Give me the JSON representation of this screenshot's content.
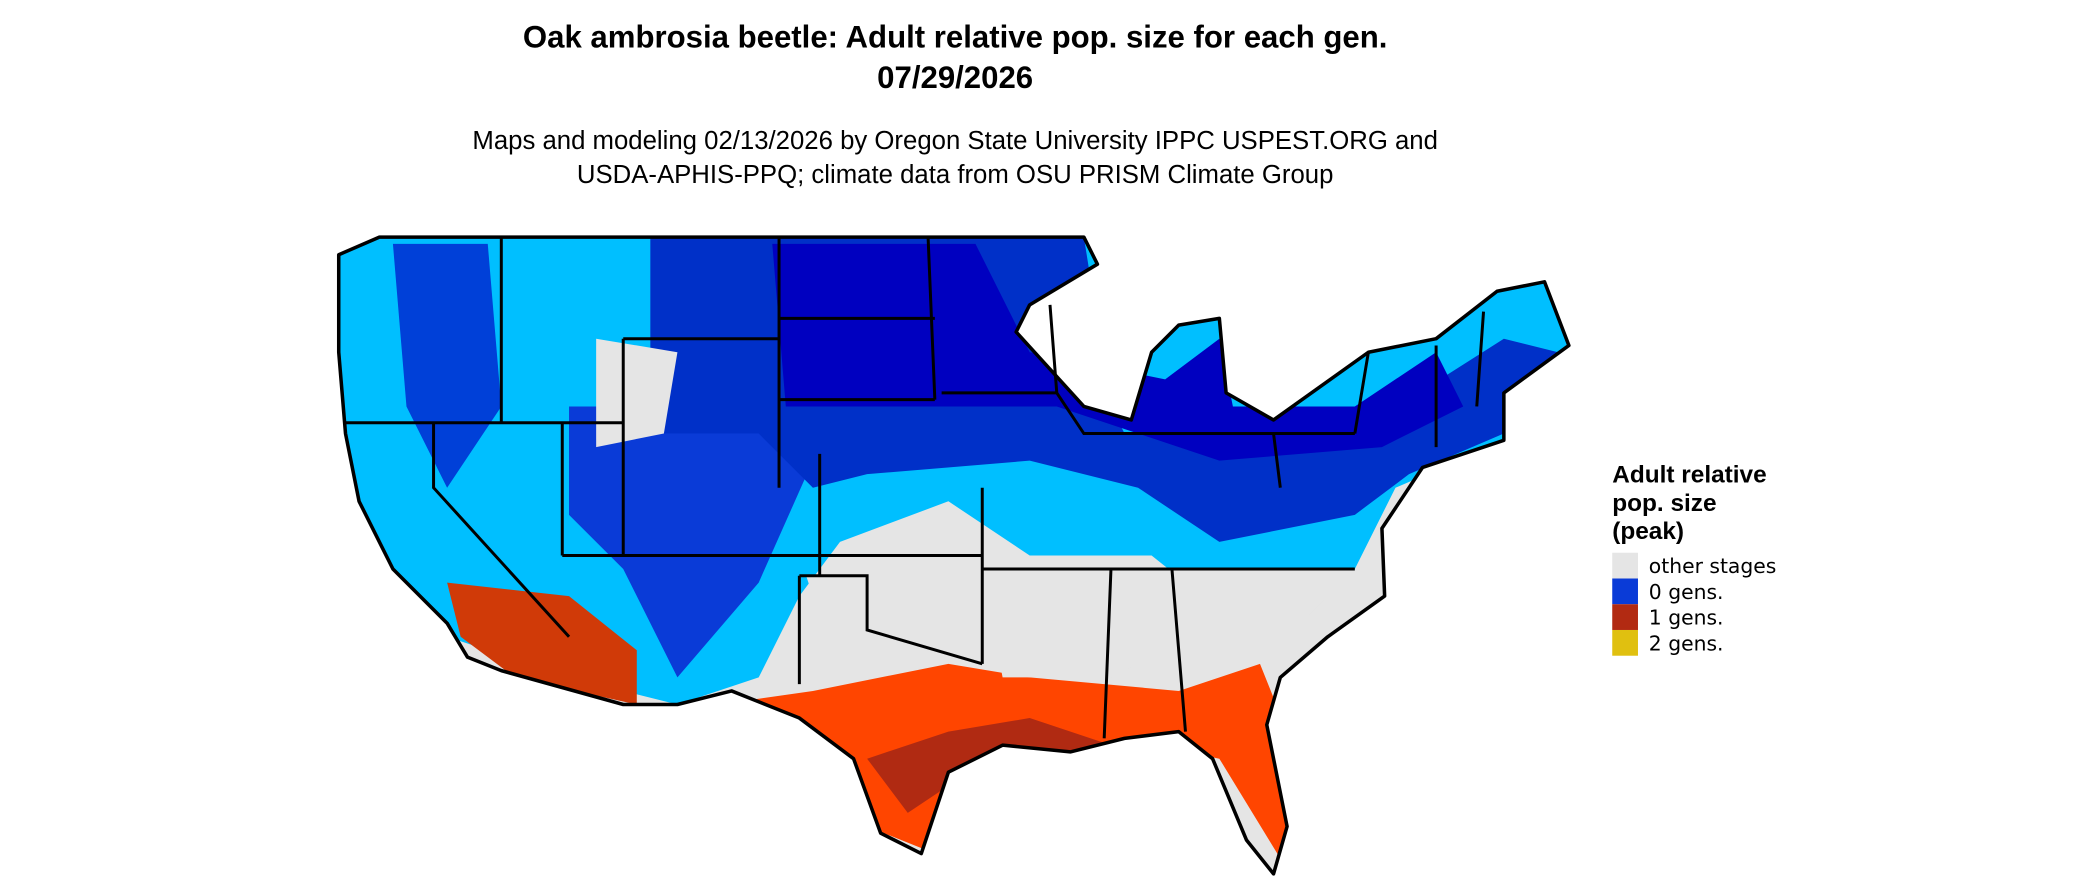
{
  "header": {
    "title": "Oak ambrosia beetle: Adult relative pop. size for each gen.",
    "date": "07/29/2026",
    "subtitle": [
      "Maps and modeling 02/13/2026 by Oregon State University IPPC USPEST.ORG and",
      "USDA-APHIS-PPQ; climate data from OSU PRISM Climate Group"
    ]
  },
  "legend": {
    "title": [
      "Adult relative",
      "pop. size",
      "(peak)"
    ],
    "items": [
      {
        "label": "other stages",
        "color": "#e5e5e5"
      },
      {
        "label": "0 gens.",
        "color": "#0a3bd7"
      },
      {
        "label": "1 gens.",
        "color": "#b22a12"
      },
      {
        "label": "2 gens.",
        "color": "#e0c010"
      }
    ]
  }
}
